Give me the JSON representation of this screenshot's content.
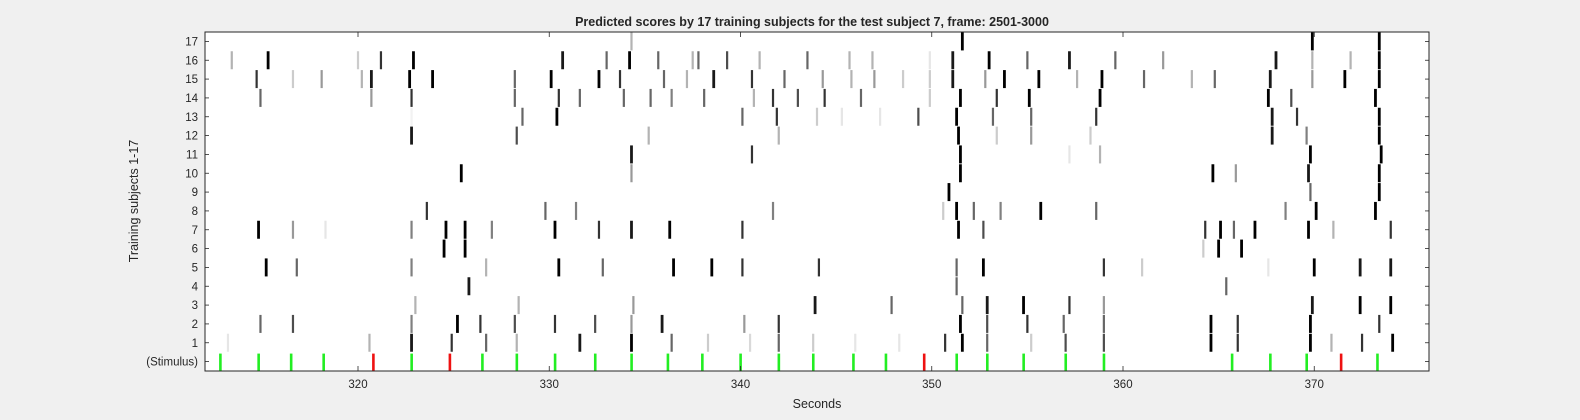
{
  "chart_data": {
    "type": "heatmap",
    "title": "Predicted scores by 17 training subjects for the test subject 7, frame: 2501-3000",
    "xlabel": "Seconds",
    "ylabel": "Training subjects 1-17",
    "xlim": [
      312,
      376
    ],
    "x_ticks": [
      320,
      330,
      340,
      350,
      360,
      370
    ],
    "y_tick_labels": [
      "(Stimulus)",
      "1",
      "2",
      "3",
      "4",
      "5",
      "6",
      "7",
      "8",
      "9",
      "10",
      "11",
      "12",
      "13",
      "14",
      "15",
      "16",
      "17"
    ],
    "grid": false,
    "colors": {
      "stimulus_correct": "#22ee22",
      "stimulus_error": "#ee1111",
      "score_scale": "white (low) to black (high)"
    },
    "stimulus": [
      {
        "t": 312.8,
        "type": "correct"
      },
      {
        "t": 314.8,
        "type": "correct"
      },
      {
        "t": 316.5,
        "type": "correct"
      },
      {
        "t": 318.2,
        "type": "correct"
      },
      {
        "t": 320.8,
        "type": "error"
      },
      {
        "t": 322.8,
        "type": "correct"
      },
      {
        "t": 324.8,
        "type": "error"
      },
      {
        "t": 326.5,
        "type": "correct"
      },
      {
        "t": 328.3,
        "type": "correct"
      },
      {
        "t": 330.3,
        "type": "correct"
      },
      {
        "t": 332.4,
        "type": "correct"
      },
      {
        "t": 334.3,
        "type": "correct"
      },
      {
        "t": 336.2,
        "type": "correct"
      },
      {
        "t": 338.0,
        "type": "correct"
      },
      {
        "t": 340.0,
        "type": "correct"
      },
      {
        "t": 342.0,
        "type": "correct"
      },
      {
        "t": 343.8,
        "type": "correct"
      },
      {
        "t": 345.9,
        "type": "correct"
      },
      {
        "t": 347.6,
        "type": "correct"
      },
      {
        "t": 349.6,
        "type": "error"
      },
      {
        "t": 351.3,
        "type": "correct"
      },
      {
        "t": 352.9,
        "type": "correct"
      },
      {
        "t": 354.8,
        "type": "correct"
      },
      {
        "t": 357.0,
        "type": "correct"
      },
      {
        "t": 359.0,
        "type": "correct"
      },
      {
        "t": 365.7,
        "type": "correct"
      },
      {
        "t": 367.7,
        "type": "correct"
      },
      {
        "t": 369.6,
        "type": "correct"
      },
      {
        "t": 371.4,
        "type": "error"
      },
      {
        "t": 373.3,
        "type": "correct"
      }
    ],
    "subjects": [
      {
        "name": "1",
        "marks": [
          [
            313.2,
            0.1
          ],
          [
            320.6,
            0.3
          ],
          [
            322.8,
            0.9
          ],
          [
            324.9,
            0.8
          ],
          [
            326.7,
            0.6
          ],
          [
            328.3,
            0.3
          ],
          [
            331.6,
            0.9
          ],
          [
            334.3,
            1.0
          ],
          [
            336.4,
            0.6
          ],
          [
            338.3,
            0.2
          ],
          [
            340.5,
            0.15
          ],
          [
            342.0,
            0.6
          ],
          [
            343.8,
            0.2
          ],
          [
            346.0,
            0.1
          ],
          [
            348.3,
            0.1
          ],
          [
            350.7,
            0.8
          ],
          [
            351.6,
            1.0
          ],
          [
            352.9,
            0.6
          ],
          [
            355.2,
            0.2
          ],
          [
            357.0,
            0.7
          ],
          [
            359.0,
            0.7
          ],
          [
            364.6,
            1.0
          ],
          [
            366.0,
            0.8
          ],
          [
            369.8,
            1.0
          ],
          [
            370.9,
            0.3
          ],
          [
            372.5,
            0.8
          ],
          [
            374.1,
            1.0
          ]
        ]
      },
      {
        "name": "2",
        "marks": [
          [
            314.9,
            0.6
          ],
          [
            316.6,
            0.7
          ],
          [
            322.8,
            0.5
          ],
          [
            325.2,
            1.0
          ],
          [
            326.4,
            0.8
          ],
          [
            328.2,
            0.7
          ],
          [
            330.3,
            0.8
          ],
          [
            332.4,
            0.7
          ],
          [
            334.3,
            0.4
          ],
          [
            335.9,
            0.9
          ],
          [
            340.2,
            0.4
          ],
          [
            342.0,
            0.8
          ],
          [
            351.5,
            1.0
          ],
          [
            352.9,
            0.7
          ],
          [
            355.0,
            0.8
          ],
          [
            356.9,
            0.6
          ],
          [
            359.0,
            0.6
          ],
          [
            364.6,
            1.0
          ],
          [
            366.0,
            0.8
          ],
          [
            369.8,
            1.0
          ],
          [
            373.4,
            0.8
          ]
        ]
      },
      {
        "name": "3",
        "marks": [
          [
            323.0,
            0.3
          ],
          [
            328.4,
            0.3
          ],
          [
            334.4,
            0.4
          ],
          [
            343.9,
            0.9
          ],
          [
            347.9,
            0.6
          ],
          [
            351.6,
            0.6
          ],
          [
            352.9,
            0.9
          ],
          [
            354.8,
            1.0
          ],
          [
            357.2,
            0.8
          ],
          [
            359.0,
            0.4
          ],
          [
            369.9,
            0.9
          ],
          [
            372.4,
            1.0
          ],
          [
            374.0,
            1.0
          ]
        ]
      },
      {
        "name": "4",
        "marks": [
          [
            325.8,
            0.9
          ],
          [
            351.3,
            0.6
          ],
          [
            365.4,
            0.6
          ]
        ]
      },
      {
        "name": "5",
        "marks": [
          [
            315.2,
            1.0
          ],
          [
            316.8,
            0.6
          ],
          [
            322.8,
            0.5
          ],
          [
            326.7,
            0.3
          ],
          [
            330.5,
            1.0
          ],
          [
            332.8,
            0.6
          ],
          [
            336.5,
            1.0
          ],
          [
            338.5,
            1.0
          ],
          [
            340.1,
            0.8
          ],
          [
            344.1,
            0.8
          ],
          [
            351.3,
            0.6
          ],
          [
            352.7,
            1.0
          ],
          [
            359.0,
            0.8
          ],
          [
            361.0,
            0.2
          ],
          [
            367.6,
            0.1
          ],
          [
            370.0,
            1.0
          ],
          [
            372.4,
            0.9
          ],
          [
            374.0,
            0.9
          ]
        ]
      },
      {
        "name": "6",
        "marks": [
          [
            324.5,
            1.0
          ],
          [
            325.6,
            1.0
          ],
          [
            364.2,
            0.2
          ],
          [
            365.0,
            1.0
          ],
          [
            366.2,
            1.0
          ]
        ]
      },
      {
        "name": "7",
        "marks": [
          [
            314.8,
            1.0
          ],
          [
            316.6,
            0.4
          ],
          [
            318.3,
            0.1
          ],
          [
            322.8,
            0.5
          ],
          [
            324.6,
            1.0
          ],
          [
            325.6,
            1.0
          ],
          [
            327.0,
            0.5
          ],
          [
            330.3,
            1.0
          ],
          [
            332.6,
            0.8
          ],
          [
            334.3,
            0.9
          ],
          [
            336.3,
            1.0
          ],
          [
            340.1,
            0.8
          ],
          [
            351.4,
            1.0
          ],
          [
            352.7,
            0.7
          ],
          [
            364.3,
            0.8
          ],
          [
            365.1,
            1.0
          ],
          [
            365.8,
            0.6
          ],
          [
            366.9,
            1.0
          ],
          [
            369.7,
            1.0
          ],
          [
            371.0,
            0.3
          ],
          [
            374.0,
            0.8
          ]
        ]
      },
      {
        "name": "8",
        "marks": [
          [
            323.6,
            0.8
          ],
          [
            329.8,
            0.6
          ],
          [
            331.4,
            0.5
          ],
          [
            341.7,
            0.5
          ],
          [
            350.6,
            0.2
          ],
          [
            351.3,
            1.0
          ],
          [
            352.2,
            0.6
          ],
          [
            353.6,
            0.5
          ],
          [
            355.7,
            1.0
          ],
          [
            358.6,
            0.6
          ],
          [
            368.5,
            0.5
          ],
          [
            370.1,
            1.0
          ],
          [
            373.2,
            1.0
          ]
        ]
      },
      {
        "name": "9",
        "marks": [
          [
            350.9,
            1.0
          ],
          [
            369.8,
            0.6
          ],
          [
            373.4,
            1.0
          ]
        ]
      },
      {
        "name": "10",
        "marks": [
          [
            325.4,
            1.0
          ],
          [
            334.3,
            0.4
          ],
          [
            351.5,
            1.0
          ],
          [
            364.7,
            1.0
          ],
          [
            365.9,
            0.4
          ],
          [
            369.7,
            0.9
          ],
          [
            373.4,
            1.0
          ]
        ]
      },
      {
        "name": "11",
        "marks": [
          [
            334.3,
            0.9
          ],
          [
            340.6,
            0.8
          ],
          [
            351.5,
            1.0
          ],
          [
            357.2,
            0.1
          ],
          [
            358.8,
            0.3
          ],
          [
            369.8,
            1.0
          ],
          [
            373.5,
            1.0
          ]
        ]
      },
      {
        "name": "12",
        "marks": [
          [
            322.8,
            0.9
          ],
          [
            328.3,
            0.7
          ],
          [
            335.2,
            0.3
          ],
          [
            342.0,
            0.3
          ],
          [
            351.4,
            1.0
          ],
          [
            353.4,
            0.2
          ],
          [
            355.2,
            0.4
          ],
          [
            358.3,
            0.2
          ],
          [
            367.8,
            0.9
          ],
          [
            369.6,
            0.5
          ],
          [
            373.4,
            1.0
          ]
        ]
      },
      {
        "name": "13",
        "marks": [
          [
            322.8,
            0.05
          ],
          [
            328.6,
            0.6
          ],
          [
            330.4,
            1.0
          ],
          [
            340.1,
            0.6
          ],
          [
            341.9,
            0.8
          ],
          [
            344.0,
            0.2
          ],
          [
            345.3,
            0.1
          ],
          [
            347.3,
            0.1
          ],
          [
            349.3,
            0.7
          ],
          [
            351.3,
            1.0
          ],
          [
            353.2,
            0.6
          ],
          [
            355.2,
            0.6
          ],
          [
            358.6,
            0.8
          ],
          [
            367.8,
            0.9
          ],
          [
            369.1,
            0.8
          ],
          [
            373.4,
            1.0
          ]
        ]
      },
      {
        "name": "14",
        "marks": [
          [
            314.9,
            0.6
          ],
          [
            320.7,
            0.4
          ],
          [
            322.8,
            0.8
          ],
          [
            328.2,
            0.6
          ],
          [
            330.5,
            0.8
          ],
          [
            331.6,
            0.6
          ],
          [
            333.9,
            0.6
          ],
          [
            335.3,
            0.6
          ],
          [
            336.4,
            0.5
          ],
          [
            338.1,
            0.6
          ],
          [
            340.7,
            0.3
          ],
          [
            341.7,
            0.8
          ],
          [
            343.0,
            0.7
          ],
          [
            344.4,
            0.8
          ],
          [
            346.3,
            0.6
          ],
          [
            349.9,
            0.2
          ],
          [
            351.5,
            1.0
          ],
          [
            353.4,
            0.8
          ],
          [
            355.1,
            1.0
          ],
          [
            358.8,
            1.0
          ],
          [
            367.6,
            1.0
          ],
          [
            368.8,
            0.7
          ],
          [
            373.2,
            1.0
          ]
        ]
      },
      {
        "name": "15",
        "marks": [
          [
            314.7,
            0.8
          ],
          [
            316.6,
            0.2
          ],
          [
            318.1,
            0.4
          ],
          [
            320.2,
            0.3
          ],
          [
            320.7,
            0.9
          ],
          [
            322.7,
            1.0
          ],
          [
            323.9,
            1.0
          ],
          [
            328.2,
            0.6
          ],
          [
            330.1,
            1.0
          ],
          [
            332.6,
            1.0
          ],
          [
            333.7,
            0.8
          ],
          [
            336.0,
            0.6
          ],
          [
            337.2,
            0.3
          ],
          [
            338.6,
            0.9
          ],
          [
            340.6,
            0.8
          ],
          [
            342.3,
            0.6
          ],
          [
            344.3,
            0.4
          ],
          [
            345.8,
            0.3
          ],
          [
            347.0,
            0.4
          ],
          [
            348.5,
            0.2
          ],
          [
            349.9,
            0.2
          ],
          [
            351.1,
            0.9
          ],
          [
            352.8,
            0.4
          ],
          [
            353.8,
            1.0
          ],
          [
            355.6,
            1.0
          ],
          [
            357.6,
            0.3
          ],
          [
            358.9,
            1.0
          ],
          [
            361.1,
            0.6
          ],
          [
            363.6,
            0.3
          ],
          [
            364.8,
            0.6
          ],
          [
            367.7,
            0.9
          ],
          [
            369.9,
            0.4
          ],
          [
            371.6,
            1.0
          ],
          [
            373.4,
            1.0
          ]
        ]
      },
      {
        "name": "16",
        "marks": [
          [
            313.4,
            0.3
          ],
          [
            315.3,
            1.0
          ],
          [
            320.0,
            0.2
          ],
          [
            321.2,
            0.8
          ],
          [
            322.9,
            1.0
          ],
          [
            330.7,
            0.9
          ],
          [
            333.0,
            0.6
          ],
          [
            334.2,
            1.0
          ],
          [
            335.7,
            0.6
          ],
          [
            337.5,
            0.3
          ],
          [
            337.8,
            0.6
          ],
          [
            339.3,
            0.7
          ],
          [
            341.0,
            0.3
          ],
          [
            343.5,
            0.6
          ],
          [
            345.7,
            0.3
          ],
          [
            346.9,
            0.3
          ],
          [
            349.9,
            0.1
          ],
          [
            351.1,
            0.9
          ],
          [
            353.0,
            1.0
          ],
          [
            355.0,
            0.6
          ],
          [
            357.2,
            0.9
          ],
          [
            359.6,
            0.6
          ],
          [
            362.1,
            0.4
          ],
          [
            368.0,
            0.9
          ],
          [
            369.9,
            0.3
          ],
          [
            371.9,
            0.3
          ],
          [
            373.4,
            1.0
          ]
        ]
      },
      {
        "name": "17",
        "marks": [
          [
            334.3,
            0.3
          ],
          [
            351.6,
            1.0
          ],
          [
            369.9,
            1.0
          ],
          [
            373.4,
            1.0
          ]
        ]
      }
    ]
  }
}
